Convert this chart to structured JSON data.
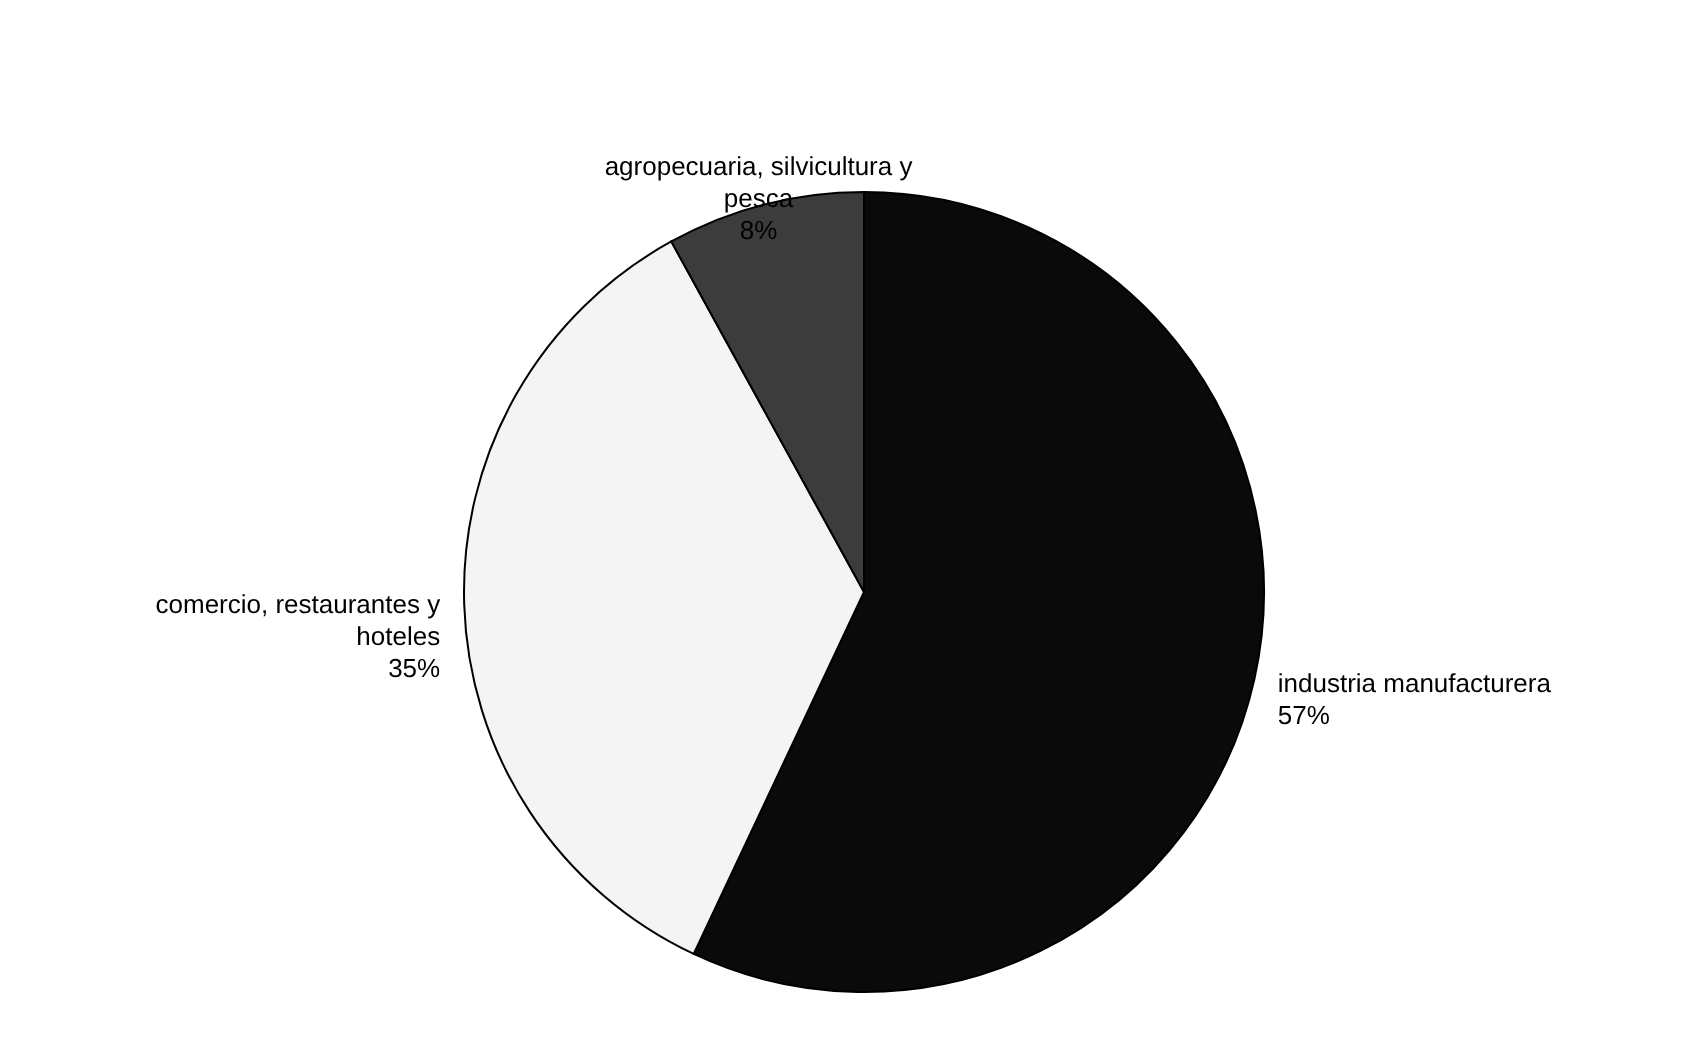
{
  "chart_data": {
    "type": "pie",
    "categories": [
      "industria manufacturera",
      "comercio, restaurantes y hoteles",
      "agropecuaria, silvicultura y pesca"
    ],
    "values": [
      57,
      35,
      8
    ],
    "colors": [
      "#0a0a0a",
      "#f4f4f4",
      "#3c3c3c"
    ],
    "value_labels": [
      "57%",
      "35%",
      "8%"
    ]
  }
}
